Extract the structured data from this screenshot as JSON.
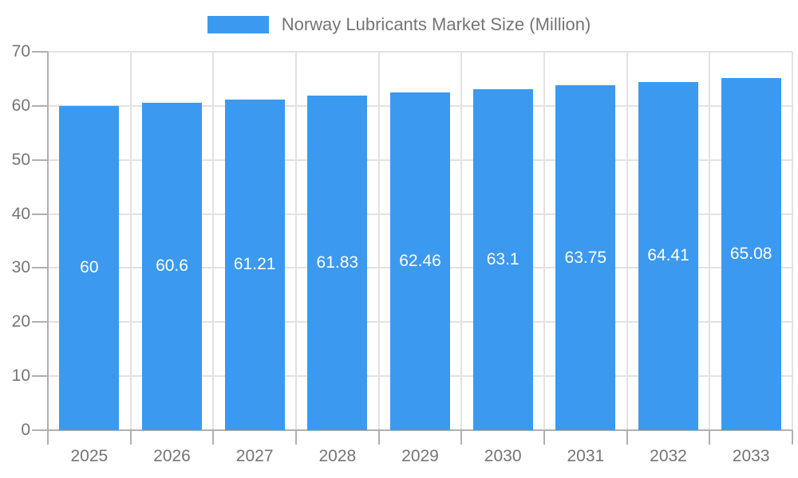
{
  "chart_data": {
    "type": "bar",
    "title": "Norway Lubricants Market Size (Million)",
    "categories": [
      "2025",
      "2026",
      "2027",
      "2028",
      "2029",
      "2030",
      "2031",
      "2032",
      "2033"
    ],
    "values": [
      60,
      60.6,
      61.21,
      61.83,
      62.46,
      63.1,
      63.75,
      64.41,
      65.08
    ],
    "bar_labels": [
      "60",
      "60.6",
      "61.21",
      "61.83",
      "62.46",
      "63.1",
      "63.75",
      "64.41",
      "65.08"
    ],
    "series_name": "Norway Lubricants Market Size (Million)",
    "xlabel": "",
    "ylabel": "",
    "ylim": [
      0,
      70
    ],
    "yticks": [
      0,
      10,
      20,
      30,
      40,
      50,
      60,
      70
    ],
    "grid": true,
    "legend_position": "top",
    "colors": {
      "bar": "#3B99F0",
      "grid": "#E2E2E2",
      "axis": "#B0B0B0",
      "text": "#757575",
      "bar_label": "#FFFFFF"
    }
  }
}
